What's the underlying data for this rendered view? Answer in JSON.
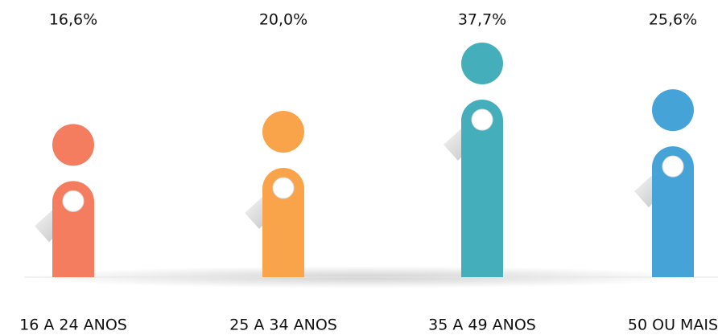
{
  "chart_data": {
    "type": "bar",
    "categories": [
      "16 A 24 ANOS",
      "25 A 34 ANOS",
      "35 A 49 ANOS",
      "50 OU MAIS"
    ],
    "values": [
      16.6,
      20.0,
      37.7,
      25.6
    ],
    "value_labels": [
      "16,6%",
      "20,0%",
      "37,7%",
      "25,6%"
    ],
    "colors": [
      "#f47c5f",
      "#f9a44a",
      "#45aebb",
      "#46a3d8"
    ]
  }
}
